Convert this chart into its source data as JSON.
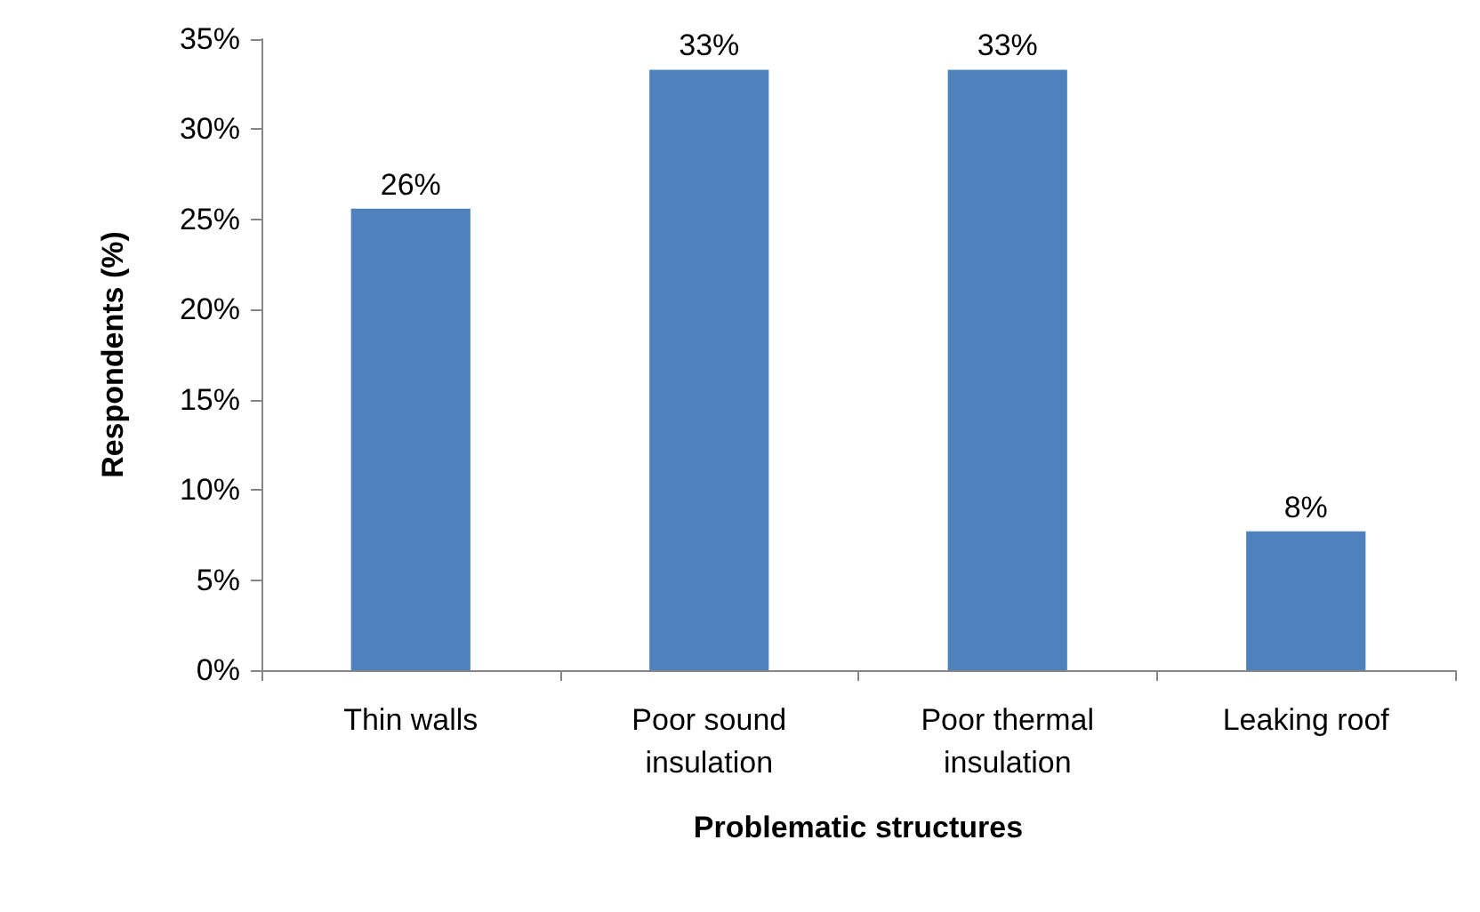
{
  "chart_data": {
    "type": "bar",
    "xlabel": "Problematic structures",
    "ylabel": "Respondents (%)",
    "categories": [
      "Thin walls",
      "Poor sound\ninsulation",
      "Poor thermal\ninsulation",
      "Leaking roof"
    ],
    "values": [
      25.6,
      33.3,
      33.3,
      7.7
    ],
    "value_labels": [
      "26%",
      "33%",
      "33%",
      "8%"
    ],
    "color": "#4f81bd",
    "ylim": [
      0,
      35
    ],
    "yticks": [
      {
        "value": 0,
        "label": "0%"
      },
      {
        "value": 5,
        "label": "5%"
      },
      {
        "value": 10,
        "label": "10%"
      },
      {
        "value": 15,
        "label": "15%"
      },
      {
        "value": 20,
        "label": "20%"
      },
      {
        "value": 25,
        "label": "25%"
      },
      {
        "value": 30,
        "label": "30%"
      },
      {
        "value": 35,
        "label": "35%"
      }
    ],
    "grid": false
  }
}
